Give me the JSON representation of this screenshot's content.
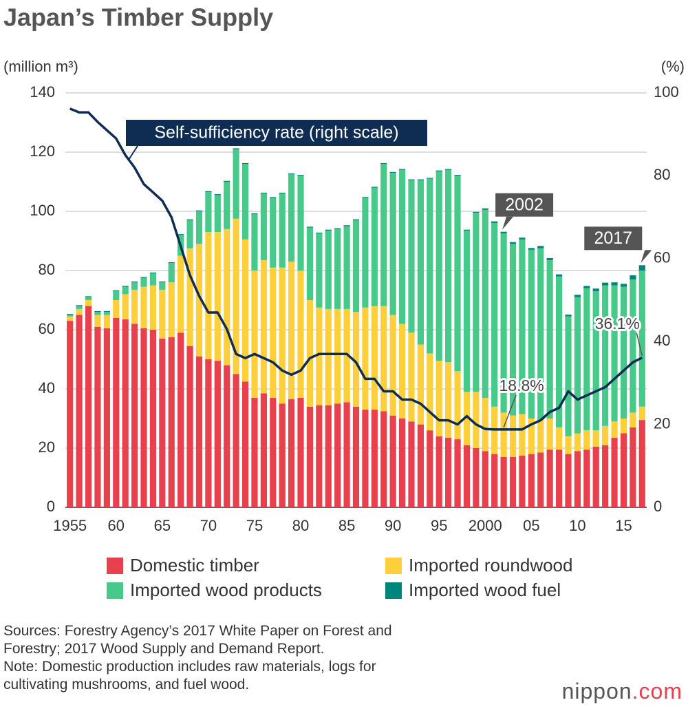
{
  "chart_data": {
    "type": "bar",
    "stacked": true,
    "title": "Japan’s Timber Supply",
    "y_label": "(million m³)",
    "y2_label": "(%)",
    "categories": [
      "1955",
      null,
      null,
      null,
      null,
      "60",
      null,
      null,
      null,
      null,
      "65",
      null,
      null,
      null,
      null,
      "70",
      null,
      null,
      null,
      null,
      "75",
      null,
      null,
      null,
      null,
      "80",
      null,
      null,
      null,
      null,
      "85",
      null,
      null,
      null,
      null,
      "90",
      null,
      null,
      null,
      null,
      "95",
      null,
      null,
      null,
      null,
      "2000",
      null,
      null,
      null,
      null,
      "05",
      null,
      null,
      null,
      null,
      "10",
      null,
      null,
      null,
      null,
      "15",
      null,
      null
    ],
    "series": [
      {
        "name": "Domestic timber",
        "color": "#e8404d",
        "values": [
          63,
          65,
          68,
          61,
          60.5,
          64,
          63.5,
          62,
          60.5,
          60,
          57,
          57.5,
          59,
          54.5,
          51,
          50,
          49.5,
          48,
          45,
          42.5,
          37,
          38.5,
          37,
          35,
          36.5,
          37,
          34,
          34.5,
          34.5,
          35,
          35.5,
          34,
          33,
          33,
          32.5,
          31,
          30,
          29,
          28,
          26,
          24,
          23.5,
          23,
          21,
          20,
          19,
          18,
          17,
          17,
          17.5,
          18,
          18.5,
          19.5,
          19.5,
          18,
          19,
          19.5,
          20.5,
          21,
          23.5,
          25,
          27,
          29.5
        ]
      },
      {
        "name": "Imported roundwood",
        "color": "#fdd03b",
        "values": [
          1.5,
          2,
          2,
          4,
          4.5,
          6,
          8.5,
          11.5,
          14,
          15,
          16.5,
          18.5,
          26,
          33,
          38,
          43,
          43.5,
          46,
          52.5,
          48,
          43,
          45,
          44,
          46,
          46.5,
          43,
          36,
          33,
          32.5,
          32,
          31.5,
          32,
          34.5,
          35,
          35.5,
          34,
          32,
          30,
          27,
          26,
          25.5,
          25.5,
          23,
          18,
          19,
          18,
          16,
          15,
          14,
          14,
          12,
          11,
          10.5,
          7.5,
          6,
          6,
          6.5,
          5.5,
          6.5,
          5.5,
          5,
          5,
          4.5
        ]
      },
      {
        "name": "Imported wood products",
        "color": "#47c98a",
        "values": [
          0.5,
          1,
          1,
          1,
          1,
          3,
          2.5,
          2.5,
          3,
          4,
          2.5,
          6.5,
          7,
          9.5,
          11,
          13.5,
          12.5,
          16,
          23.5,
          25.5,
          19,
          22.5,
          23.5,
          25,
          29.5,
          32,
          24.5,
          25,
          26.5,
          27,
          28,
          31,
          37,
          40,
          48,
          48,
          52,
          51.5,
          55.5,
          59,
          64,
          65,
          66,
          54.5,
          60.5,
          63.5,
          62,
          60.5,
          58,
          59,
          57,
          58,
          53.5,
          51,
          40.5,
          46,
          48,
          47,
          47.5,
          46,
          44.5,
          45,
          46
        ]
      },
      {
        "name": "Imported wood fuel",
        "color": "#00857c",
        "values": [
          0.3,
          0.3,
          0.3,
          0.3,
          0.3,
          0.3,
          0.3,
          0.3,
          0.3,
          0.3,
          0.3,
          0.3,
          0.3,
          0.3,
          0.3,
          0.3,
          0.3,
          0.3,
          0.3,
          0.3,
          0.3,
          0.3,
          0.3,
          0.3,
          0.3,
          0.3,
          0.3,
          0.3,
          0.3,
          0.3,
          0.3,
          0.3,
          0.3,
          0.3,
          0.3,
          0.3,
          0.3,
          0.3,
          0.3,
          0.3,
          0.3,
          0.3,
          0.3,
          0.3,
          0.3,
          0.5,
          0.6,
          0.6,
          0.6,
          0.6,
          0.6,
          0.8,
          0.7,
          0.7,
          0.6,
          0.8,
          0.8,
          0.9,
          0.9,
          1,
          1,
          1.4,
          1.8
        ]
      },
      {
        "name": "Self-sufficiency rate (right scale)",
        "type": "line",
        "axis": "y2",
        "color": "#0f2d52",
        "values": [
          96.2,
          95.3,
          95.3,
          93,
          91,
          89,
          85,
          82,
          78,
          76,
          74,
          70,
          63,
          56,
          51,
          47,
          47,
          43,
          37,
          36,
          37,
          36,
          35,
          33,
          32,
          33,
          36,
          37,
          37,
          37,
          37,
          35,
          31,
          31,
          28,
          28,
          26,
          26,
          25,
          23,
          21,
          21,
          20,
          22,
          20,
          18.9,
          18.8,
          18.8,
          18.8,
          18.8,
          20,
          21,
          23,
          24,
          28,
          26,
          27,
          28,
          29,
          31,
          33,
          35,
          36.1
        ],
        "value_labels": [
          null,
          null,
          null,
          null,
          null,
          null,
          null,
          null,
          null,
          null,
          null,
          null,
          null,
          null,
          null,
          null,
          null,
          null,
          null,
          null,
          null,
          null,
          null,
          null,
          null,
          null,
          null,
          null,
          null,
          null,
          null,
          null,
          null,
          null,
          null,
          null,
          null,
          null,
          null,
          null,
          null,
          null,
          null,
          null,
          null,
          null,
          null,
          "18.8%",
          null,
          null,
          null,
          null,
          null,
          null,
          null,
          null,
          null,
          null,
          null,
          null,
          null,
          null,
          "36.1%"
        ]
      }
    ],
    "annotations": [
      {
        "text": "2002",
        "category": 47
      },
      {
        "text": "2017",
        "category": 62
      }
    ],
    "ylim": [
      0,
      140
    ],
    "yticks": [
      0,
      20,
      40,
      60,
      80,
      100,
      120,
      140
    ],
    "y2lim": [
      0,
      100
    ],
    "y2ticks": [
      0,
      20,
      40,
      60,
      80,
      100
    ],
    "grid": true
  },
  "footer": {
    "lines": [
      "Sources: Forestry Agency’s 2017 White Paper on Forest and",
      "Forestry; 2017 Wood Supply and Demand Report.",
      "Note: Domestic production includes raw materials, logs for",
      "cultivating mushrooms, and fuel wood."
    ],
    "brand": [
      "nippon",
      ".com"
    ]
  }
}
